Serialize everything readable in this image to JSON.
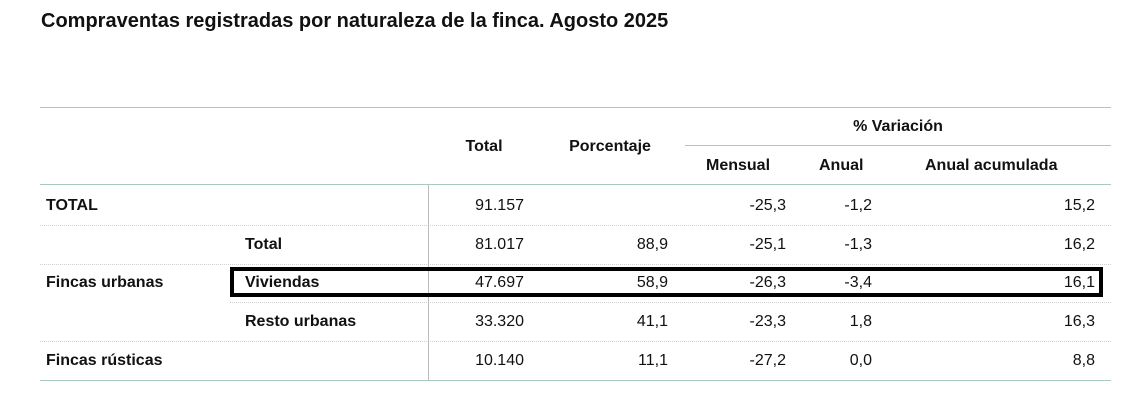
{
  "title": "Compraventas registradas por naturaleza de la finca. Agosto 2025",
  "header": {
    "total": "Total",
    "porcentaje": "Porcentaje",
    "variacion": "% Variación",
    "mensual": "Mensual",
    "anual": "Anual",
    "anual_acumulada": "Anual acumulada"
  },
  "rows": [
    {
      "group": "TOTAL",
      "sub": "",
      "total": "91.157",
      "porcentaje": "",
      "mensual": "-25,3",
      "anual": "-1,2",
      "acumulada": "15,2"
    },
    {
      "group": "",
      "sub": "Total",
      "total": "81.017",
      "porcentaje": "88,9",
      "mensual": "-25,1",
      "anual": "-1,3",
      "acumulada": "16,2"
    },
    {
      "group": "Fincas urbanas",
      "sub": "Viviendas",
      "total": "47.697",
      "porcentaje": "58,9",
      "mensual": "-26,3",
      "anual": "-3,4",
      "acumulada": "16,1"
    },
    {
      "group": "",
      "sub": "Resto urbanas",
      "total": "33.320",
      "porcentaje": "41,1",
      "mensual": "-23,3",
      "anual": "1,8",
      "acumulada": "16,3"
    },
    {
      "group": "Fincas rústicas",
      "sub": "",
      "total": "10.140",
      "porcentaje": "11,1",
      "mensual": "-27,2",
      "anual": "0,0",
      "acumulada": "8,8"
    }
  ]
}
